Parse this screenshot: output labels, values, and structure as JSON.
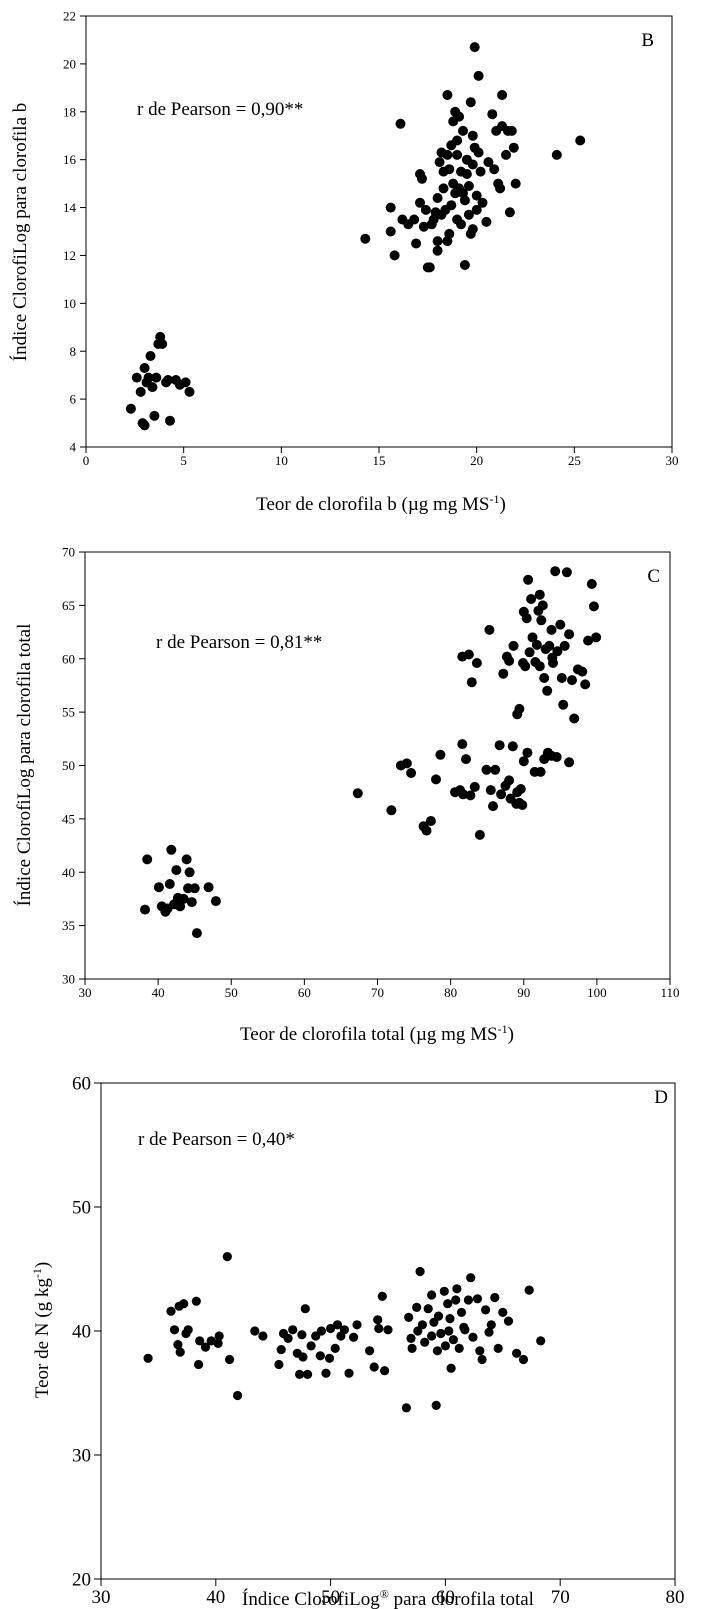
{
  "chart_data": [
    {
      "type": "scatter",
      "panel": "B",
      "xlabel": "Teor de clorofila b (µg mg MS",
      "xlabel_sup": "-1",
      "xlabel_end": ")",
      "ylabel": "Índice ClorofiLog para clorofila b",
      "annotation": "r de Pearson = 0,90**",
      "xlim": [
        0,
        30
      ],
      "ylim": [
        4,
        22
      ],
      "xticks": [
        "0",
        "5",
        "10",
        "15",
        "20",
        "25",
        "30"
      ],
      "yticks": [
        "4",
        "6",
        "8",
        "10",
        "12",
        "14",
        "16",
        "18",
        "20",
        "22"
      ],
      "marker_color": "#000000",
      "points": [
        [
          2.3,
          5.6
        ],
        [
          2.6,
          6.9
        ],
        [
          2.8,
          6.3
        ],
        [
          2.9,
          5.0
        ],
        [
          3.0,
          7.3
        ],
        [
          3.1,
          6.7
        ],
        [
          3.2,
          6.9
        ],
        [
          3.3,
          7.8
        ],
        [
          3.4,
          6.5
        ],
        [
          3.5,
          5.3
        ],
        [
          3.6,
          6.9
        ],
        [
          3.7,
          8.3
        ],
        [
          3.8,
          8.6
        ],
        [
          3.9,
          8.3
        ],
        [
          4.1,
          6.7
        ],
        [
          4.2,
          6.8
        ],
        [
          4.3,
          5.1
        ],
        [
          4.6,
          6.8
        ],
        [
          4.8,
          6.6
        ],
        [
          5.1,
          6.7
        ],
        [
          5.3,
          6.3
        ],
        [
          3.0,
          4.9
        ],
        [
          14.3,
          12.7
        ],
        [
          15.6,
          14.0
        ],
        [
          15.6,
          13.0
        ],
        [
          15.8,
          12.0
        ],
        [
          16.1,
          17.5
        ],
        [
          16.2,
          13.5
        ],
        [
          16.5,
          13.3
        ],
        [
          16.8,
          13.5
        ],
        [
          16.9,
          12.5
        ],
        [
          17.1,
          15.4
        ],
        [
          17.1,
          14.2
        ],
        [
          17.3,
          13.2
        ],
        [
          17.4,
          13.9
        ],
        [
          17.5,
          11.5
        ],
        [
          17.6,
          11.5
        ],
        [
          17.7,
          13.3
        ],
        [
          17.8,
          13.5
        ],
        [
          17.9,
          13.8
        ],
        [
          18.0,
          12.2
        ],
        [
          18.0,
          12.6
        ],
        [
          18.1,
          15.9
        ],
        [
          18.2,
          16.3
        ],
        [
          18.2,
          13.7
        ],
        [
          18.3,
          14.8
        ],
        [
          18.3,
          15.5
        ],
        [
          18.4,
          13.9
        ],
        [
          18.5,
          16.2
        ],
        [
          18.5,
          18.7
        ],
        [
          18.6,
          15.6
        ],
        [
          18.6,
          12.9
        ],
        [
          18.7,
          16.6
        ],
        [
          18.7,
          14.1
        ],
        [
          18.8,
          17.6
        ],
        [
          18.8,
          15.0
        ],
        [
          18.9,
          18.0
        ],
        [
          18.9,
          14.6
        ],
        [
          19.0,
          13.5
        ],
        [
          19.0,
          16.2
        ],
        [
          19.1,
          14.8
        ],
        [
          19.1,
          17.8
        ],
        [
          19.2,
          13.3
        ],
        [
          19.2,
          15.5
        ],
        [
          19.3,
          14.6
        ],
        [
          19.3,
          17.2
        ],
        [
          19.4,
          11.6
        ],
        [
          19.4,
          14.3
        ],
        [
          19.5,
          15.4
        ],
        [
          19.5,
          16.0
        ],
        [
          19.6,
          13.7
        ],
        [
          19.6,
          14.9
        ],
        [
          19.7,
          18.4
        ],
        [
          19.7,
          12.9
        ],
        [
          19.8,
          15.8
        ],
        [
          19.8,
          17.0
        ],
        [
          19.9,
          20.7
        ],
        [
          19.9,
          16.5
        ],
        [
          20.0,
          14.5
        ],
        [
          20.0,
          13.9
        ],
        [
          20.1,
          16.3
        ],
        [
          20.1,
          19.5
        ],
        [
          20.2,
          15.5
        ],
        [
          20.3,
          14.2
        ],
        [
          20.5,
          13.4
        ],
        [
          20.6,
          15.9
        ],
        [
          20.8,
          17.9
        ],
        [
          20.9,
          15.6
        ],
        [
          21.0,
          17.2
        ],
        [
          21.1,
          15.0
        ],
        [
          21.2,
          14.8
        ],
        [
          21.3,
          17.4
        ],
        [
          21.3,
          18.7
        ],
        [
          21.5,
          16.2
        ],
        [
          21.6,
          17.2
        ],
        [
          21.7,
          13.8
        ],
        [
          21.8,
          17.2
        ],
        [
          21.9,
          16.5
        ],
        [
          22.0,
          15.0
        ],
        [
          24.1,
          16.2
        ],
        [
          25.3,
          16.8
        ],
        [
          18.0,
          14.4
        ],
        [
          17.2,
          15.2
        ],
        [
          19.0,
          16.8
        ],
        [
          18.5,
          12.6
        ],
        [
          19.8,
          13.1
        ]
      ]
    },
    {
      "type": "scatter",
      "panel": "C",
      "xlabel": "Teor de clorofila total (µg mg MS",
      "xlabel_sup": "-1",
      "xlabel_end": ")",
      "ylabel": "Índice ClorofiLog para clorofila total",
      "annotation": "r de Pearson = 0,81**",
      "xlim": [
        30,
        110
      ],
      "ylim": [
        30,
        70
      ],
      "xticks": [
        "30",
        "40",
        "50",
        "60",
        "70",
        "80",
        "90",
        "100",
        "110"
      ],
      "yticks": [
        "30",
        "35",
        "40",
        "45",
        "50",
        "55",
        "60",
        "65",
        "70"
      ],
      "marker_color": "#000000",
      "points": [
        [
          38.2,
          36.5
        ],
        [
          38.5,
          41.2
        ],
        [
          40.1,
          38.6
        ],
        [
          40.5,
          36.8
        ],
        [
          41.0,
          36.3
        ],
        [
          41.3,
          36.6
        ],
        [
          41.6,
          38.9
        ],
        [
          41.8,
          42.1
        ],
        [
          42.2,
          37.0
        ],
        [
          42.5,
          40.2
        ],
        [
          42.7,
          37.6
        ],
        [
          43.0,
          36.8
        ],
        [
          43.5,
          37.5
        ],
        [
          43.9,
          41.2
        ],
        [
          44.1,
          38.5
        ],
        [
          44.3,
          40.0
        ],
        [
          44.6,
          37.2
        ],
        [
          45.0,
          38.5
        ],
        [
          45.3,
          34.3
        ],
        [
          46.9,
          38.6
        ],
        [
          47.9,
          37.3
        ],
        [
          67.3,
          47.4
        ],
        [
          71.9,
          45.8
        ],
        [
          73.2,
          50.0
        ],
        [
          74.0,
          50.2
        ],
        [
          74.6,
          49.3
        ],
        [
          76.3,
          44.3
        ],
        [
          76.7,
          43.9
        ],
        [
          77.3,
          44.8
        ],
        [
          78.0,
          48.7
        ],
        [
          78.6,
          51.0
        ],
        [
          80.6,
          47.5
        ],
        [
          81.3,
          47.7
        ],
        [
          81.6,
          52.0
        ],
        [
          81.7,
          47.3
        ],
        [
          82.1,
          50.6
        ],
        [
          82.7,
          47.2
        ],
        [
          83.3,
          48.0
        ],
        [
          84.0,
          43.5
        ],
        [
          84.9,
          49.6
        ],
        [
          85.5,
          47.7
        ],
        [
          85.8,
          46.2
        ],
        [
          86.1,
          49.6
        ],
        [
          86.7,
          51.9
        ],
        [
          86.9,
          47.3
        ],
        [
          87.5,
          48.1
        ],
        [
          88.0,
          48.6
        ],
        [
          88.2,
          46.9
        ],
        [
          88.5,
          51.8
        ],
        [
          89.0,
          46.4
        ],
        [
          89.1,
          47.5
        ],
        [
          89.4,
          46.5
        ],
        [
          89.6,
          47.8
        ],
        [
          89.8,
          46.3
        ],
        [
          90.0,
          50.4
        ],
        [
          90.5,
          51.2
        ],
        [
          91.5,
          49.4
        ],
        [
          92.3,
          49.4
        ],
        [
          92.8,
          50.6
        ],
        [
          93.3,
          51.2
        ],
        [
          93.8,
          50.9
        ],
        [
          94.5,
          50.8
        ],
        [
          96.2,
          50.3
        ],
        [
          81.6,
          60.2
        ],
        [
          82.5,
          60.4
        ],
        [
          82.9,
          57.8
        ],
        [
          83.6,
          59.6
        ],
        [
          85.3,
          62.7
        ],
        [
          87.2,
          58.6
        ],
        [
          87.7,
          60.2
        ],
        [
          88.0,
          59.8
        ],
        [
          88.6,
          61.2
        ],
        [
          89.1,
          54.8
        ],
        [
          89.4,
          55.3
        ],
        [
          89.9,
          59.6
        ],
        [
          90.0,
          64.4
        ],
        [
          90.2,
          59.3
        ],
        [
          90.4,
          63.8
        ],
        [
          90.6,
          67.4
        ],
        [
          90.8,
          60.6
        ],
        [
          91.0,
          65.6
        ],
        [
          91.2,
          62.0
        ],
        [
          91.6,
          59.7
        ],
        [
          91.8,
          61.3
        ],
        [
          92.0,
          64.5
        ],
        [
          92.2,
          59.3
        ],
        [
          92.4,
          63.6
        ],
        [
          92.6,
          65.0
        ],
        [
          92.8,
          58.2
        ],
        [
          93.0,
          60.9
        ],
        [
          93.2,
          57.0
        ],
        [
          93.5,
          61.2
        ],
        [
          93.8,
          62.7
        ],
        [
          94.0,
          59.6
        ],
        [
          94.3,
          68.2
        ],
        [
          94.6,
          60.7
        ],
        [
          95.0,
          63.2
        ],
        [
          95.2,
          58.2
        ],
        [
          95.4,
          55.7
        ],
        [
          95.6,
          61.2
        ],
        [
          95.9,
          68.1
        ],
        [
          96.2,
          62.3
        ],
        [
          96.6,
          58.0
        ],
        [
          96.9,
          54.4
        ],
        [
          97.4,
          59.0
        ],
        [
          98.0,
          58.8
        ],
        [
          98.4,
          57.6
        ],
        [
          98.8,
          61.7
        ],
        [
          99.3,
          67.0
        ],
        [
          99.6,
          64.9
        ],
        [
          99.9,
          62.0
        ],
        [
          93.9,
          60.1
        ],
        [
          92.2,
          66.0
        ]
      ]
    },
    {
      "type": "scatter",
      "panel": "D",
      "xlabel": "Índice ClorofiLog",
      "xlabel_sup": "®",
      "xlabel_end": " para clorofila total",
      "ylabel": "Teor de N (g kg",
      "ylabel_sup": "-1",
      "ylabel_end": ")",
      "annotation": "r de Pearson = 0,40*",
      "xlim": [
        30,
        80
      ],
      "ylim": [
        20,
        60
      ],
      "xticks": [
        "30",
        "40",
        "50",
        "60",
        "70",
        "80"
      ],
      "yticks": [
        "20",
        "30",
        "40",
        "50",
        "60"
      ],
      "marker_color": "#000000",
      "points": [
        [
          34.1,
          37.8
        ],
        [
          36.1,
          41.6
        ],
        [
          36.4,
          40.1
        ],
        [
          36.7,
          38.9
        ],
        [
          36.8,
          42.0
        ],
        [
          36.9,
          38.3
        ],
        [
          37.2,
          42.2
        ],
        [
          37.4,
          39.8
        ],
        [
          37.6,
          40.1
        ],
        [
          38.3,
          42.4
        ],
        [
          38.5,
          37.3
        ],
        [
          38.6,
          39.2
        ],
        [
          39.1,
          38.7
        ],
        [
          39.6,
          39.2
        ],
        [
          40.2,
          39.0
        ],
        [
          40.3,
          39.6
        ],
        [
          41.0,
          46.0
        ],
        [
          41.2,
          37.7
        ],
        [
          41.9,
          34.8
        ],
        [
          43.4,
          40.0
        ],
        [
          44.1,
          39.6
        ],
        [
          45.5,
          37.3
        ],
        [
          45.7,
          38.5
        ],
        [
          45.9,
          39.8
        ],
        [
          46.3,
          39.4
        ],
        [
          46.7,
          40.1
        ],
        [
          47.1,
          38.2
        ],
        [
          47.3,
          36.5
        ],
        [
          47.5,
          39.7
        ],
        [
          47.6,
          37.9
        ],
        [
          47.8,
          41.8
        ],
        [
          48.0,
          36.5
        ],
        [
          48.3,
          38.8
        ],
        [
          48.7,
          39.6
        ],
        [
          49.1,
          38.0
        ],
        [
          49.2,
          40.0
        ],
        [
          49.6,
          36.6
        ],
        [
          49.9,
          37.8
        ],
        [
          50.0,
          40.2
        ],
        [
          50.4,
          38.6
        ],
        [
          50.6,
          40.5
        ],
        [
          50.9,
          39.6
        ],
        [
          51.2,
          40.1
        ],
        [
          51.6,
          36.6
        ],
        [
          52.0,
          39.5
        ],
        [
          52.3,
          40.5
        ],
        [
          53.4,
          38.4
        ],
        [
          53.8,
          37.1
        ],
        [
          54.1,
          40.9
        ],
        [
          54.2,
          40.2
        ],
        [
          54.5,
          42.8
        ],
        [
          54.7,
          36.8
        ],
        [
          55.0,
          40.1
        ],
        [
          56.6,
          33.8
        ],
        [
          56.8,
          41.1
        ],
        [
          57.1,
          38.6
        ],
        [
          57.5,
          41.9
        ],
        [
          57.6,
          40.0
        ],
        [
          57.8,
          44.8
        ],
        [
          58.0,
          40.5
        ],
        [
          58.2,
          39.1
        ],
        [
          58.5,
          41.8
        ],
        [
          58.8,
          39.6
        ],
        [
          59.0,
          40.7
        ],
        [
          59.2,
          34.0
        ],
        [
          59.3,
          38.4
        ],
        [
          59.4,
          41.2
        ],
        [
          59.6,
          39.8
        ],
        [
          59.9,
          43.2
        ],
        [
          60.0,
          38.8
        ],
        [
          60.2,
          42.2
        ],
        [
          60.4,
          41.0
        ],
        [
          60.5,
          37.0
        ],
        [
          60.7,
          39.3
        ],
        [
          60.9,
          42.5
        ],
        [
          61.0,
          43.4
        ],
        [
          61.2,
          38.6
        ],
        [
          61.4,
          41.5
        ],
        [
          61.6,
          40.3
        ],
        [
          62.0,
          42.5
        ],
        [
          62.2,
          44.3
        ],
        [
          62.4,
          39.5
        ],
        [
          62.8,
          42.6
        ],
        [
          63.0,
          38.4
        ],
        [
          63.2,
          37.7
        ],
        [
          63.5,
          41.7
        ],
        [
          64.0,
          40.5
        ],
        [
          64.3,
          42.7
        ],
        [
          64.6,
          38.6
        ],
        [
          65.0,
          41.5
        ],
        [
          65.5,
          40.8
        ],
        [
          66.2,
          38.2
        ],
        [
          66.8,
          37.7
        ],
        [
          67.3,
          43.3
        ],
        [
          68.3,
          39.2
        ],
        [
          60.3,
          40.0
        ],
        [
          58.8,
          42.9
        ],
        [
          61.7,
          40.1
        ],
        [
          57.0,
          39.4
        ],
        [
          63.8,
          39.9
        ]
      ]
    }
  ]
}
